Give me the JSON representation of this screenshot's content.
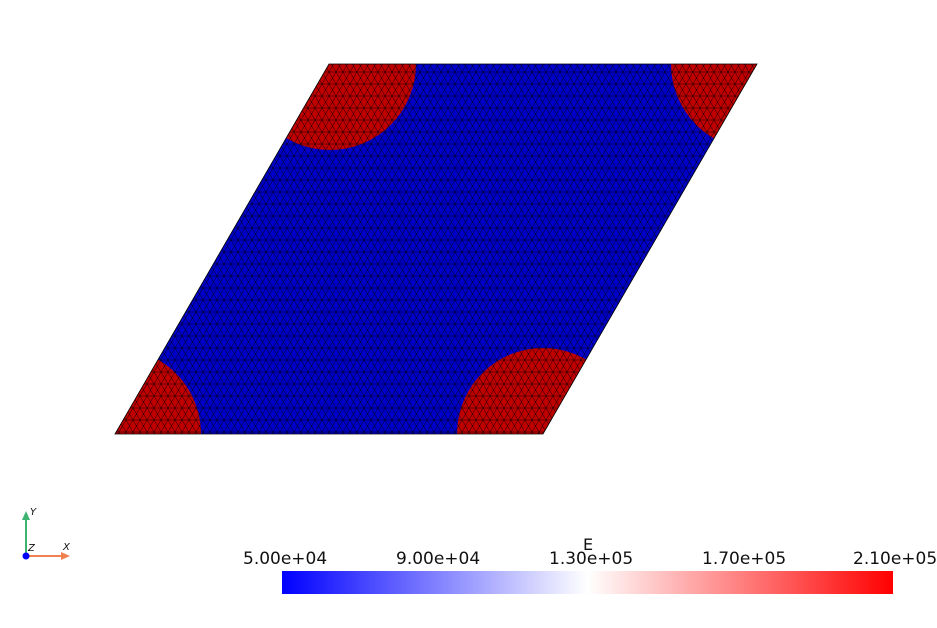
{
  "colorbar": {
    "title": "E",
    "ticks": [
      "5.00e+04",
      "9.00e+04",
      "1.30e+05",
      "1.70e+05",
      "2.10e+05"
    ],
    "min_color": "#0000ff",
    "mid_color": "#ffffff",
    "max_color": "#ff0000"
  },
  "orientation": {
    "x": "X",
    "y": "Y",
    "z": "Z"
  },
  "field_colors": {
    "matrix": "#0000c8",
    "inclusion": "#c00000",
    "mesh_line": "#000000"
  }
}
